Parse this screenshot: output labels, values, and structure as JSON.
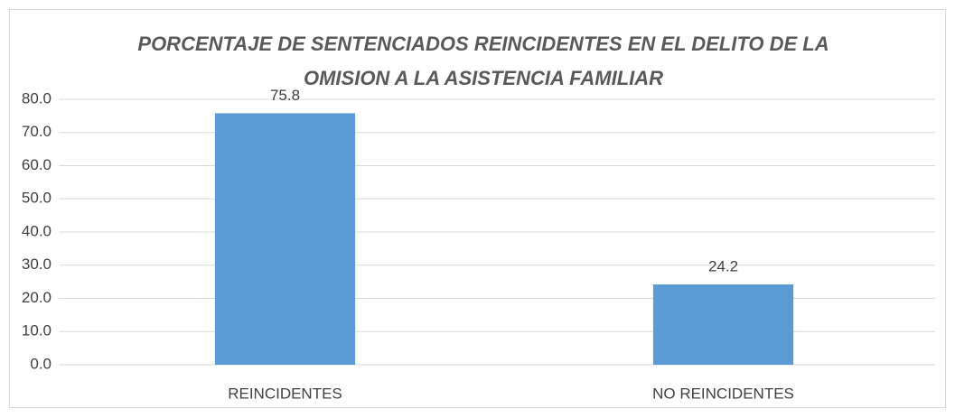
{
  "chart_data": {
    "type": "bar",
    "title": [
      "PORCENTAJE DE SENTENCIADOS REINCIDENTES EN EL DELITO DE LA",
      "OMISION A LA ASISTENCIA FAMILIAR"
    ],
    "categories": [
      "REINCIDENTES",
      "NO REINCIDENTES"
    ],
    "values": [
      75.8,
      24.2
    ],
    "color": "#5b9bd5",
    "ylim": [
      0,
      80
    ],
    "yticks": [
      {
        "value": 0,
        "label": "0.0"
      },
      {
        "value": 10,
        "label": "10.0"
      },
      {
        "value": 20,
        "label": "20.0"
      },
      {
        "value": 30,
        "label": "30.0"
      },
      {
        "value": 40,
        "label": "40.0"
      },
      {
        "value": 50,
        "label": "50.0"
      },
      {
        "value": 60,
        "label": "60.0"
      },
      {
        "value": 70,
        "label": "70.0"
      },
      {
        "value": 80,
        "label": "80.0"
      }
    ],
    "grid": true
  }
}
